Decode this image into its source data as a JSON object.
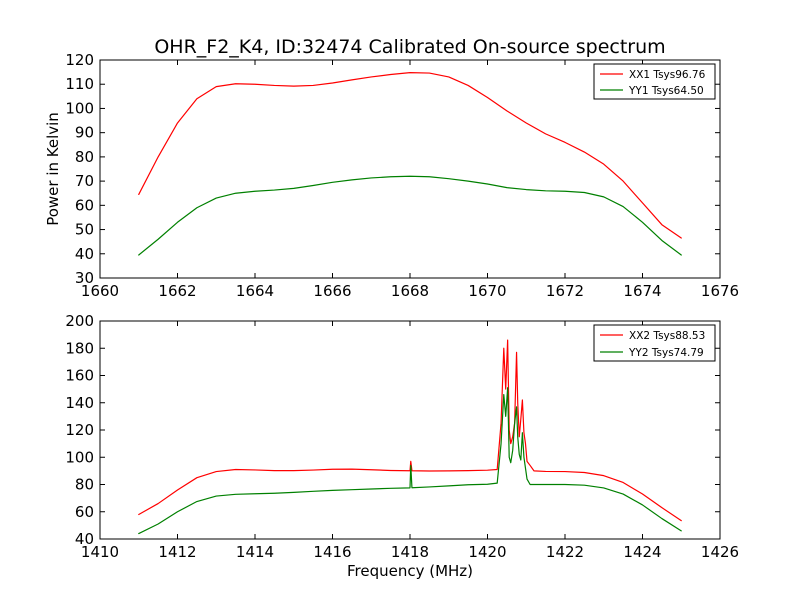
{
  "chart_data": [
    {
      "type": "line",
      "title": "OHR_F2_K4, ID:32474 Calibrated On-source spectrum",
      "xlabel": "",
      "ylabel": "Power in Kelvin",
      "xlim": [
        1660,
        1676
      ],
      "ylim": [
        30,
        120
      ],
      "xticks": [
        "1660",
        "1662",
        "1664",
        "1666",
        "1668",
        "1670",
        "1672",
        "1674",
        "1676"
      ],
      "yticks": [
        "30",
        "40",
        "50",
        "60",
        "70",
        "80",
        "90",
        "100",
        "110",
        "120"
      ],
      "legend_position": "top-right",
      "grid": false,
      "series": [
        {
          "name": "XX1 Tsys96.76",
          "color": "#ff0000",
          "x": [
            1661.0,
            1661.5,
            1662.0,
            1662.5,
            1663.0,
            1663.5,
            1664.0,
            1664.5,
            1665.0,
            1665.5,
            1666.0,
            1666.5,
            1667.0,
            1667.5,
            1668.0,
            1668.5,
            1669.0,
            1669.5,
            1670.0,
            1670.5,
            1671.0,
            1671.5,
            1672.0,
            1672.5,
            1673.0,
            1673.5,
            1674.0,
            1674.5,
            1675.0
          ],
          "y": [
            64.5,
            80,
            94,
            104,
            109,
            110.2,
            110,
            109.5,
            109.2,
            109.5,
            110.5,
            111.8,
            113,
            114,
            114.8,
            114.6,
            113,
            109.5,
            104.5,
            99,
            94,
            89.5,
            86,
            82,
            77,
            70,
            61,
            52,
            46.5
          ]
        },
        {
          "name": "YY1 Tsys64.50",
          "color": "#008000",
          "x": [
            1661.0,
            1661.5,
            1662.0,
            1662.5,
            1663.0,
            1663.5,
            1664.0,
            1664.5,
            1665.0,
            1665.5,
            1666.0,
            1666.5,
            1667.0,
            1667.5,
            1668.0,
            1668.5,
            1669.0,
            1669.5,
            1670.0,
            1670.5,
            1671.0,
            1671.5,
            1672.0,
            1672.5,
            1673.0,
            1673.5,
            1674.0,
            1674.5,
            1675.0
          ],
          "y": [
            39.5,
            46,
            53,
            59,
            63,
            65,
            65.8,
            66.3,
            67,
            68.2,
            69.5,
            70.5,
            71.3,
            71.8,
            72,
            71.8,
            71,
            70,
            68.8,
            67.3,
            66.5,
            66,
            65.8,
            65.3,
            63.5,
            59.5,
            53,
            45.5,
            39.5
          ]
        }
      ]
    },
    {
      "type": "line",
      "title": "",
      "xlabel": "Frequency (MHz)",
      "ylabel": "",
      "xlim": [
        1410,
        1426
      ],
      "ylim": [
        40,
        200
      ],
      "xticks": [
        "1410",
        "1412",
        "1414",
        "1416",
        "1418",
        "1420",
        "1422",
        "1424",
        "1426"
      ],
      "yticks": [
        "40",
        "60",
        "80",
        "100",
        "120",
        "140",
        "160",
        "180",
        "200"
      ],
      "legend_position": "top-right",
      "grid": false,
      "series": [
        {
          "name": "XX2 Tsys88.53",
          "color": "#ff0000",
          "x": [
            1411.0,
            1411.5,
            1412.0,
            1412.5,
            1413.0,
            1413.5,
            1414.0,
            1414.5,
            1415.0,
            1415.5,
            1416.0,
            1416.5,
            1417.0,
            1417.5,
            1418.0,
            1418.02,
            1418.05,
            1418.5,
            1419.0,
            1419.5,
            1420.0,
            1420.25,
            1420.35,
            1420.42,
            1420.47,
            1420.52,
            1420.56,
            1420.6,
            1420.65,
            1420.7,
            1420.75,
            1420.78,
            1420.82,
            1420.86,
            1420.9,
            1420.94,
            1420.98,
            1421.02,
            1421.1,
            1421.2,
            1421.5,
            1422.0,
            1422.5,
            1423.0,
            1423.5,
            1424.0,
            1424.5,
            1425.0
          ],
          "y": [
            58,
            66,
            76,
            85,
            89.5,
            91,
            90.7,
            90.2,
            90.2,
            90.6,
            91.2,
            91.3,
            90.8,
            90.3,
            90.1,
            97,
            90.1,
            89.9,
            90,
            90.2,
            90.5,
            91,
            125,
            180,
            150,
            186,
            120,
            110,
            115,
            125,
            177,
            140,
            115,
            128,
            142,
            118,
            110,
            97,
            94,
            90,
            89.6,
            89.5,
            88.8,
            86.5,
            81.5,
            73,
            63,
            53.5
          ]
        },
        {
          "name": "YY2 Tsys74.79",
          "color": "#008000",
          "x": [
            1411.0,
            1411.5,
            1412.0,
            1412.5,
            1413.0,
            1413.5,
            1414.0,
            1414.5,
            1415.0,
            1415.5,
            1416.0,
            1416.5,
            1417.0,
            1417.5,
            1418.0,
            1418.02,
            1418.05,
            1418.5,
            1419.0,
            1419.5,
            1420.0,
            1420.25,
            1420.35,
            1420.42,
            1420.47,
            1420.52,
            1420.56,
            1420.6,
            1420.65,
            1420.7,
            1420.75,
            1420.78,
            1420.82,
            1420.86,
            1420.9,
            1420.94,
            1420.98,
            1421.02,
            1421.1,
            1421.2,
            1421.5,
            1422.0,
            1422.5,
            1423.0,
            1423.5,
            1424.0,
            1424.5,
            1425.0
          ],
          "y": [
            44,
            51,
            60,
            67.5,
            71.5,
            72.8,
            73.2,
            73.6,
            74.2,
            75,
            75.7,
            76.2,
            76.7,
            77.2,
            77.5,
            94,
            77.6,
            78.2,
            79,
            79.8,
            80.2,
            81,
            110,
            146,
            130,
            151,
            100,
            96,
            105,
            125,
            137,
            115,
            102,
            98,
            118,
            100,
            92,
            84,
            80,
            80,
            80,
            80,
            79.5,
            77.5,
            73,
            65,
            55,
            46
          ]
        }
      ]
    }
  ]
}
